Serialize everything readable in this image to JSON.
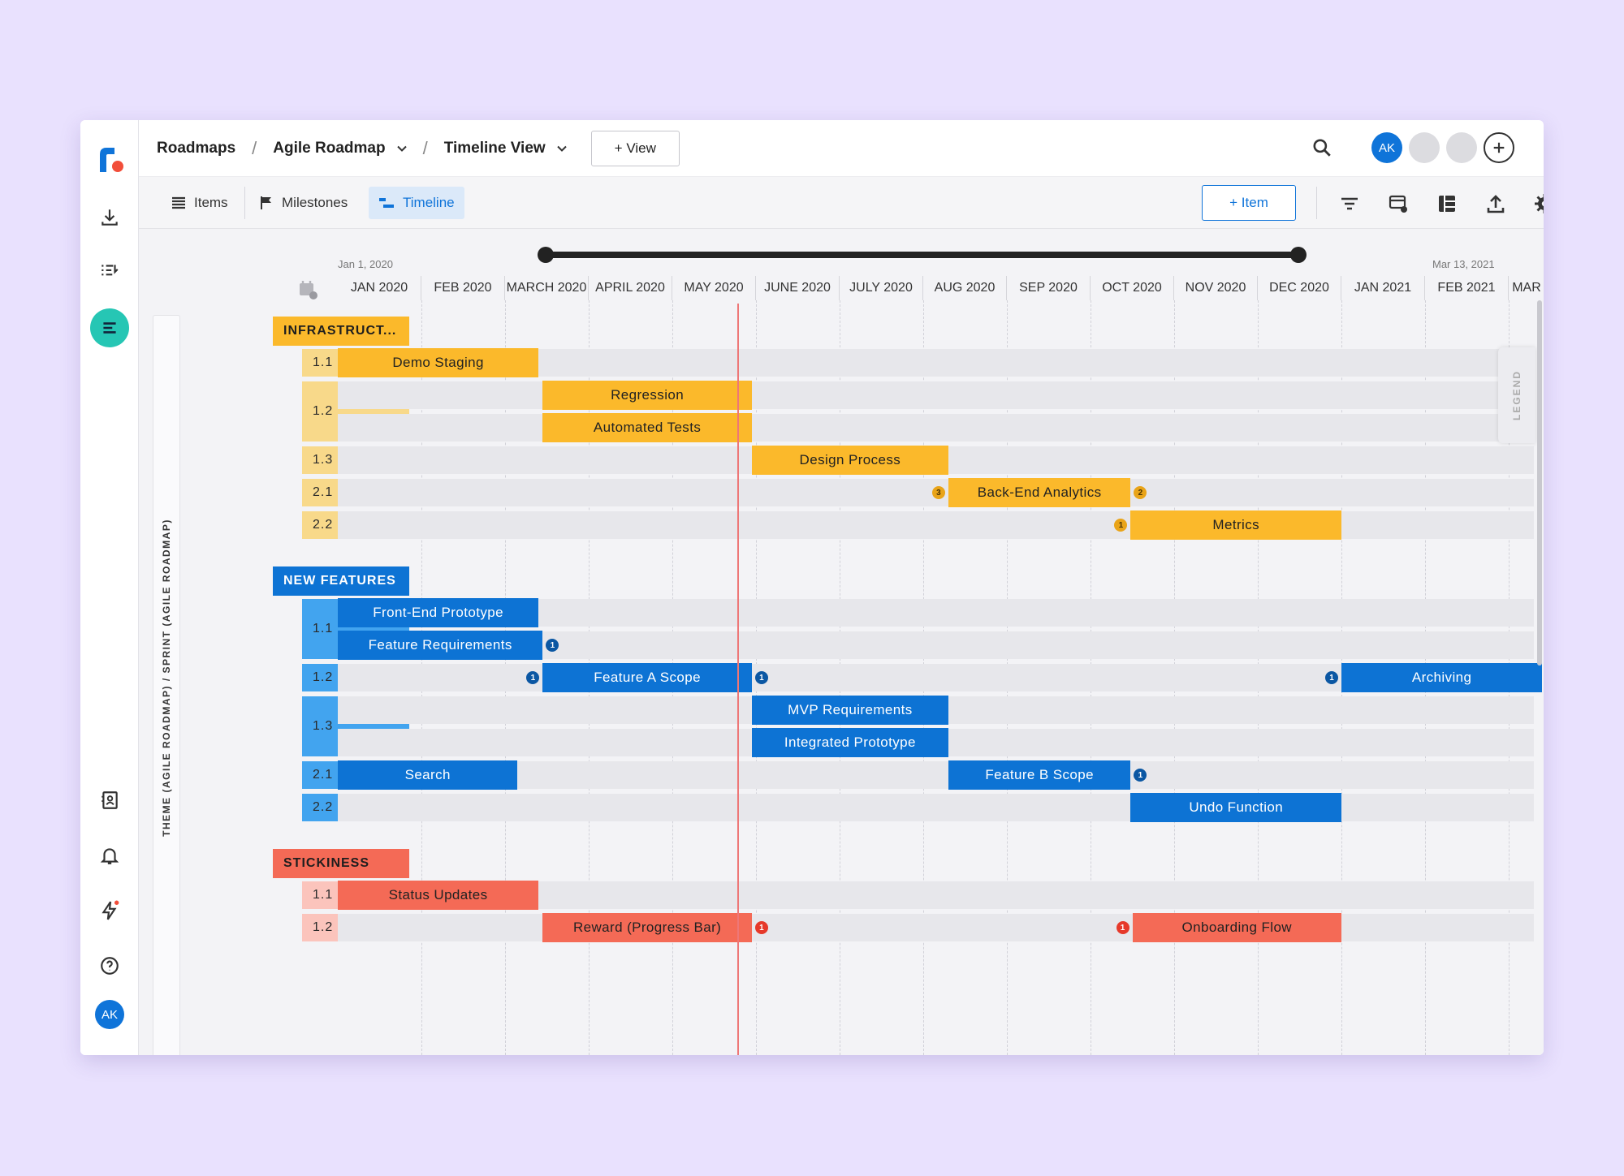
{
  "brand": {
    "accent": "#0f74d9",
    "yellow": "#fbb92b",
    "blue": "#0d73d4",
    "red": "#f46a56"
  },
  "header": {
    "crumbs": [
      "Roadmaps",
      "Agile Roadmap",
      "Timeline View"
    ],
    "separator": "/",
    "view_button": "+ View",
    "user_initials": "AK"
  },
  "toolbar": {
    "tabs": [
      "Items",
      "Milestones",
      "Timeline"
    ],
    "active_tab": "Timeline",
    "add_item": "+ Item"
  },
  "timeline": {
    "start_label": "Jan 1, 2020",
    "end_label": "Mar 13, 2021",
    "months": [
      "JAN 2020",
      "FEB 2020",
      "MARCH 2020",
      "APRIL 2020",
      "MAY 2020",
      "JUNE 2020",
      "JULY 2020",
      "AUG 2020",
      "SEP 2020",
      "OCT 2020",
      "NOV 2020",
      "DEC 2020",
      "JAN 2021",
      "FEB 2021",
      "MAR"
    ],
    "axis_label": "THEME (AGILE ROADMAP)  /  SPRINT (AGILE ROADMAP)",
    "legend": "LEGEND"
  },
  "themes": [
    {
      "name": "INFRASTRUCT...",
      "color": "yellow",
      "sprints": [
        {
          "label": "1.1",
          "items": [
            {
              "name": "Demo Staging",
              "start": 0,
              "end": 2.4
            }
          ]
        },
        {
          "label": "1.2",
          "items": [
            {
              "name": "Regression",
              "start": 2.45,
              "end": 4.95
            },
            {
              "name": "Automated Tests",
              "start": 2.45,
              "end": 4.95
            }
          ]
        },
        {
          "label": "1.3",
          "items": [
            {
              "name": "Design Process",
              "start": 4.95,
              "end": 7.3
            }
          ]
        },
        {
          "label": "2.1",
          "items": [
            {
              "name": "Back-End Analytics",
              "start": 7.3,
              "end": 9.48,
              "badge_left": "3",
              "badge_right": "2"
            }
          ]
        },
        {
          "label": "2.2",
          "items": [
            {
              "name": "Metrics",
              "start": 9.48,
              "end": 12.0,
              "badge_left": "1"
            }
          ]
        }
      ]
    },
    {
      "name": "NEW FEATURES",
      "color": "blue",
      "sprints": [
        {
          "label": "1.1",
          "items": [
            {
              "name": "Front-End Prototype",
              "start": 0,
              "end": 2.4
            },
            {
              "name": "Feature Requirements",
              "start": 0,
              "end": 2.45,
              "badge_right": "1"
            }
          ]
        },
        {
          "label": "1.2",
          "items": [
            {
              "name": "Feature A Scope",
              "start": 2.45,
              "end": 4.95,
              "badge_left": "1",
              "badge_right": "1"
            },
            {
              "name": "Archiving",
              "start": 12.0,
              "end": 14.4,
              "badge_left": "1"
            }
          ]
        },
        {
          "label": "1.3",
          "items": [
            {
              "name": "MVP Requirements",
              "start": 4.95,
              "end": 7.3
            },
            {
              "name": "Integrated Prototype",
              "start": 4.95,
              "end": 7.3
            }
          ]
        },
        {
          "label": "2.1",
          "items": [
            {
              "name": "Search",
              "start": 0,
              "end": 2.15
            },
            {
              "name": "Feature B Scope",
              "start": 7.3,
              "end": 9.48,
              "badge_right": "1"
            }
          ]
        },
        {
          "label": "2.2",
          "items": [
            {
              "name": "Undo Function",
              "start": 9.48,
              "end": 12.0
            }
          ]
        }
      ]
    },
    {
      "name": "STICKINESS",
      "color": "red",
      "sprints": [
        {
          "label": "1.1",
          "items": [
            {
              "name": "Status Updates",
              "start": 0,
              "end": 2.4
            }
          ]
        },
        {
          "label": "1.2",
          "items": [
            {
              "name": "Reward (Progress Bar)",
              "start": 2.45,
              "end": 4.95,
              "badge_right": "1"
            },
            {
              "name": "Onboarding Flow",
              "start": 9.5,
              "end": 12.0,
              "badge_left": "1"
            }
          ]
        }
      ]
    }
  ]
}
